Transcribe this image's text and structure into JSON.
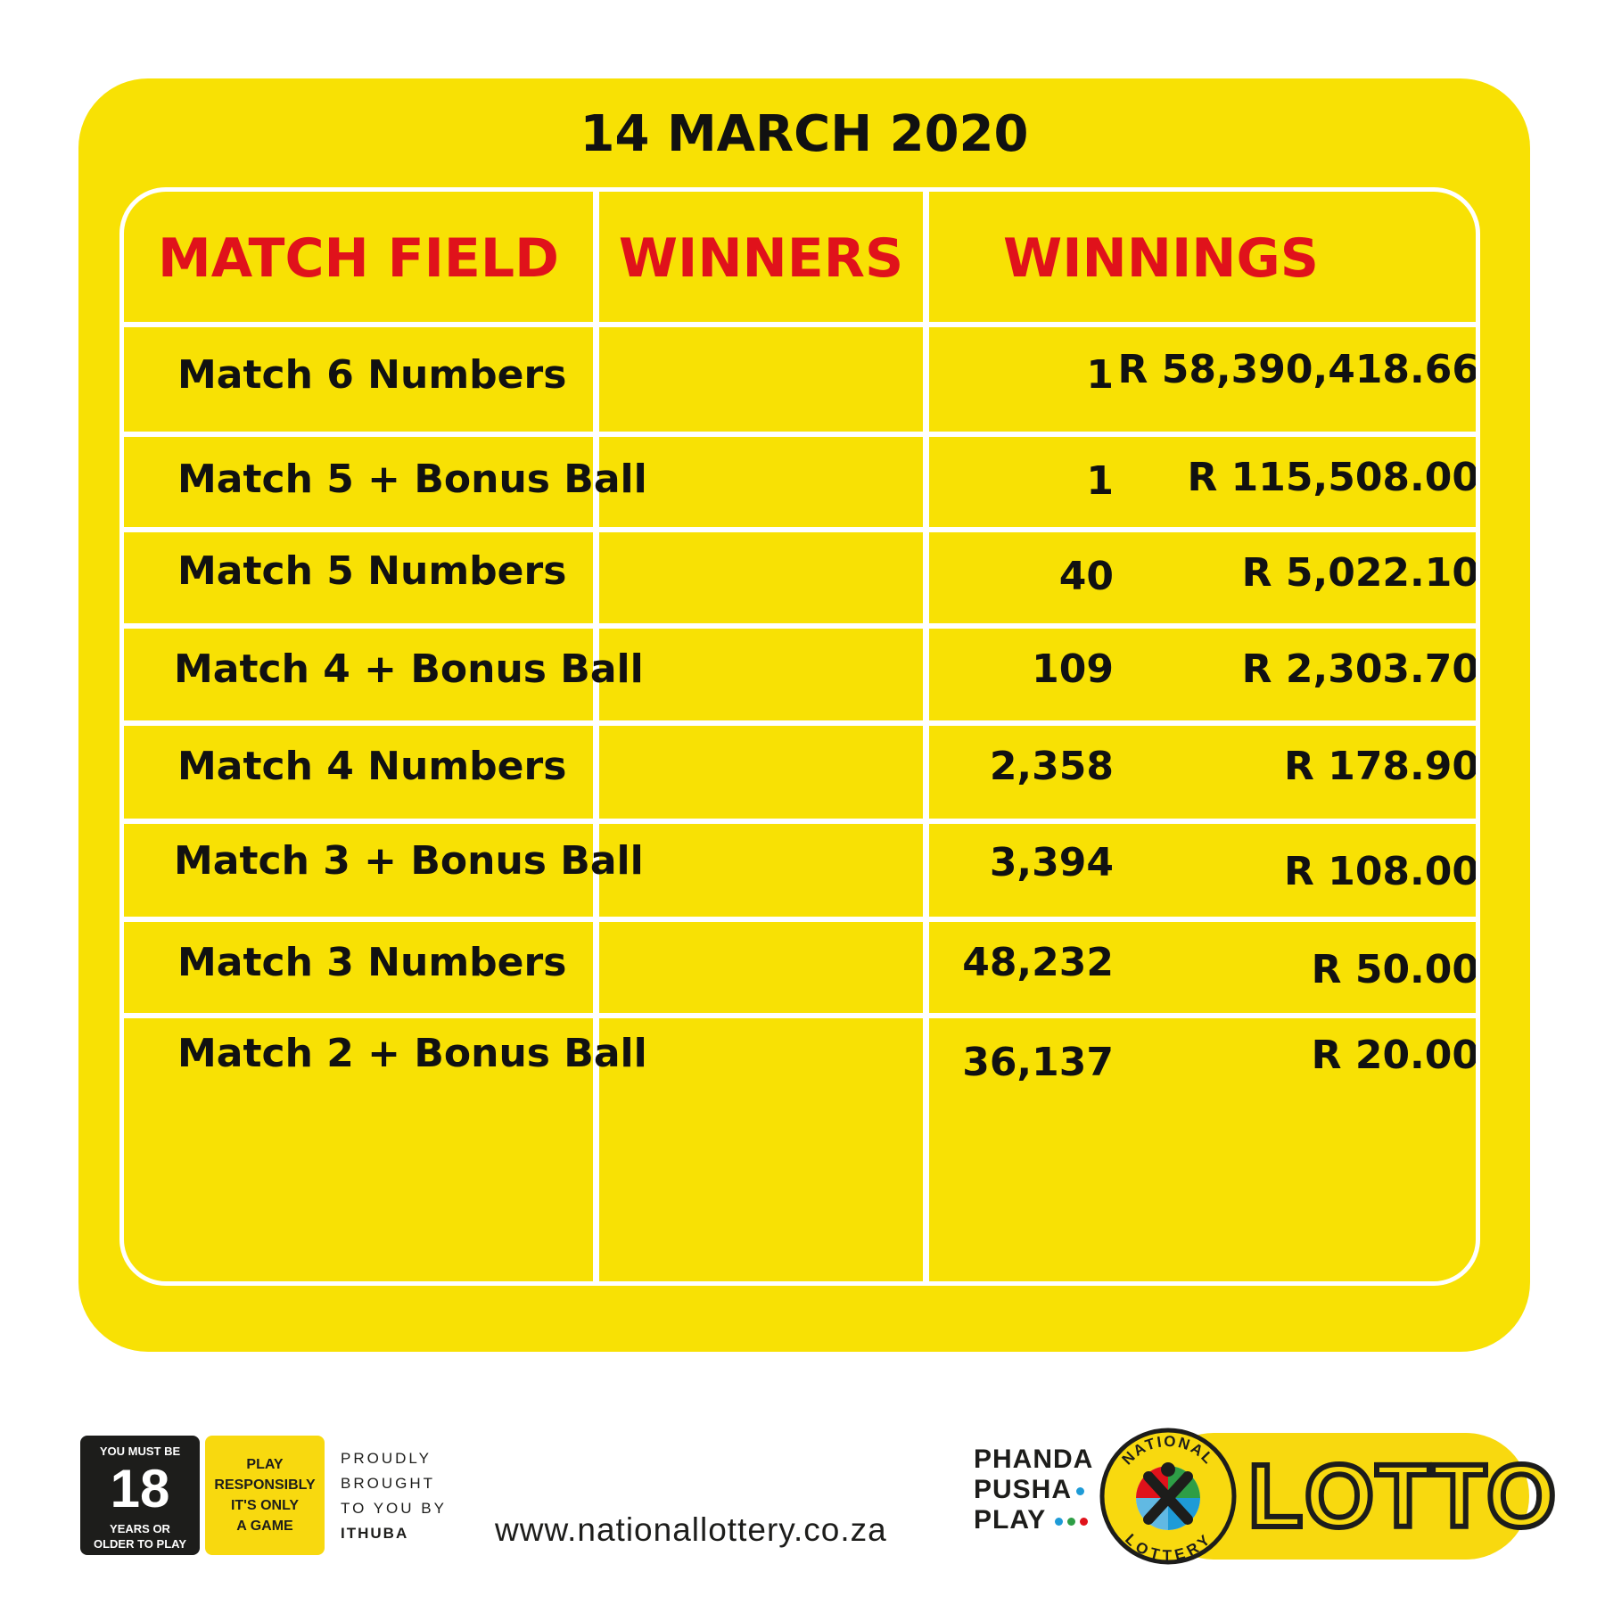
{
  "title": "14 MARCH 2020",
  "table": {
    "headers": [
      "MATCH FIELD",
      "WINNERS",
      "WINNINGS"
    ],
    "rows": [
      {
        "field": "Match 6 Numbers",
        "winners": "1",
        "winnings": "R 58,390,418.66"
      },
      {
        "field": "Match 5 + Bonus Ball",
        "winners": "1",
        "winnings": "R 115,508.00"
      },
      {
        "field": "Match 5 Numbers",
        "winners": "40",
        "winnings": "R 5,022.10"
      },
      {
        "field": "Match 4  + Bonus Ball",
        "winners": "109",
        "winnings": "R 2,303.70"
      },
      {
        "field": "Match 4 Numbers",
        "winners": "2,358",
        "winnings": "R 178.90"
      },
      {
        "field": "Match 3 + Bonus Ball",
        "winners": "3,394",
        "winnings": "R 108.00"
      },
      {
        "field": "Match 3 Numbers",
        "winners": "48,232",
        "winnings": "R 50.00"
      },
      {
        "field": "Match 2 + Bonus Ball",
        "winners": "36,137",
        "winnings": "R 20.00"
      }
    ]
  },
  "footer": {
    "age_badge": {
      "top": "YOU MUST BE",
      "number": "18",
      "bottom_line1": "YEARS OR",
      "bottom_line2": "OLDER TO PLAY"
    },
    "responsible_badge": {
      "line1": "PLAY",
      "line2": "RESPONSIBLY",
      "line3": "IT'S ONLY",
      "line4": "A GAME"
    },
    "proudly": {
      "line1": "PROUDLY",
      "line2": "BROUGHT",
      "line3": "TO YOU BY",
      "brand": "ITHUBA"
    },
    "website": "www.nationallottery.co.za",
    "slogan": {
      "line1": "PHANDA",
      "line2": "PUSHA",
      "line3": "PLAY"
    },
    "logo_ring": {
      "top": "NATIONAL",
      "bottom": "LOTTERY"
    },
    "brand_word": "LOTTO"
  },
  "colors": {
    "card_yellow": "#f8e104",
    "header_red": "#e0121b",
    "text_dark": "#111111",
    "logo_dot_blue": "#1e9bd7",
    "logo_dot_green": "#2e9e46",
    "logo_dot_red": "#e0121b"
  }
}
